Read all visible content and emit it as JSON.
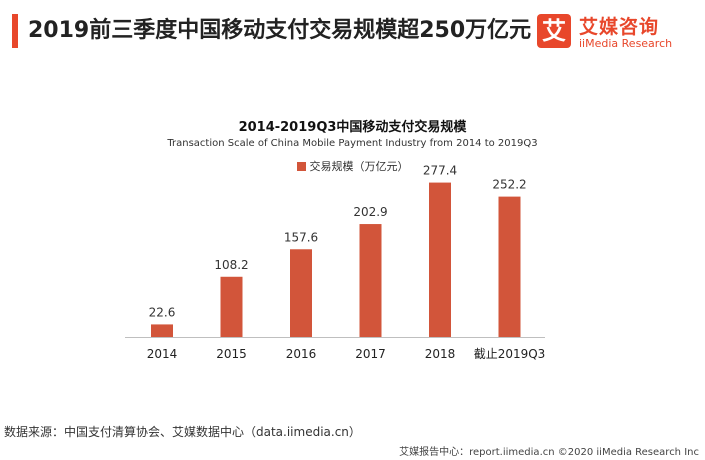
{
  "header": {
    "headline": "2019前三季度中国移动支付交易规模超250万亿元"
  },
  "logo": {
    "mark": "艾",
    "name_cn": "艾媒咨询",
    "name_en": "iiMedia Research",
    "mark_color": "#e8472b"
  },
  "chart_data": {
    "type": "bar",
    "title": "2014-2019Q3中国移动支付交易规模",
    "subtitle": "Transaction Scale of China Mobile Payment Industry from 2014 to 2019Q3",
    "categories": [
      "2014",
      "2015",
      "2016",
      "2017",
      "2018",
      "截止2019Q3"
    ],
    "series": [
      {
        "name": "交易规模（万亿元）",
        "values": [
          22.6,
          108.2,
          157.6,
          202.9,
          277.4,
          252.2
        ],
        "color": "#d2553a"
      }
    ],
    "data_labels": [
      "22.6",
      "108.2",
      "157.6",
      "202.9",
      "277.4",
      "252.2"
    ],
    "ylim": [
      0,
      300
    ],
    "grid": false,
    "legend_position": "top-center"
  },
  "footer": {
    "source": "数据来源：中国支付清算协会、艾媒数据中心（data.iimedia.cn）",
    "copyright": "艾媒报告中心：report.iimedia.cn ©2020 iiMedia Research Inc"
  }
}
